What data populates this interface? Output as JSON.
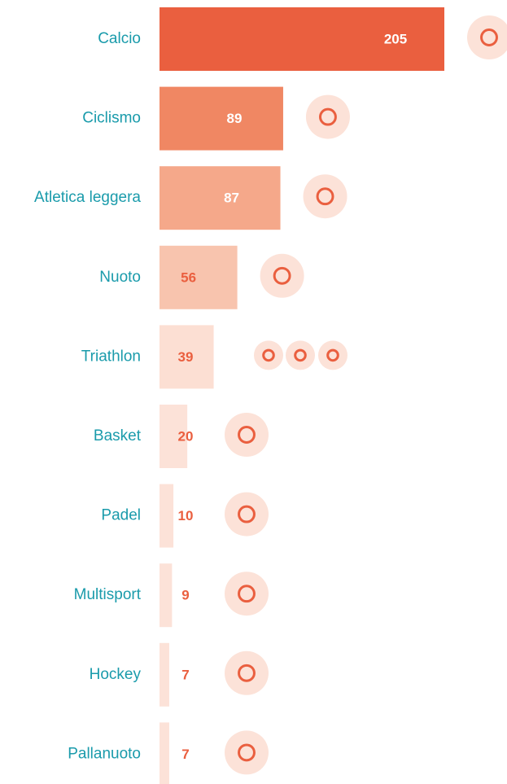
{
  "chart_data": {
    "type": "bar",
    "orientation": "horizontal",
    "categories": [
      "Calcio",
      "Ciclismo",
      "Atletica leggera",
      "Nuoto",
      "Triathlon",
      "Basket",
      "Padel",
      "Multisport",
      "Hockey",
      "Pallanuoto"
    ],
    "values": [
      205,
      89,
      87,
      56,
      39,
      20,
      10,
      9,
      7,
      7
    ],
    "colors": [
      "#ea5f3f",
      "#f08763",
      "#f5a88a",
      "#f8c4ae",
      "#fcdfd3",
      "#fce2d8",
      "#fce2d8",
      "#fce2d8",
      "#fce2d8",
      "#fce2d8"
    ],
    "icon_color": "#fce2d8"
  }
}
